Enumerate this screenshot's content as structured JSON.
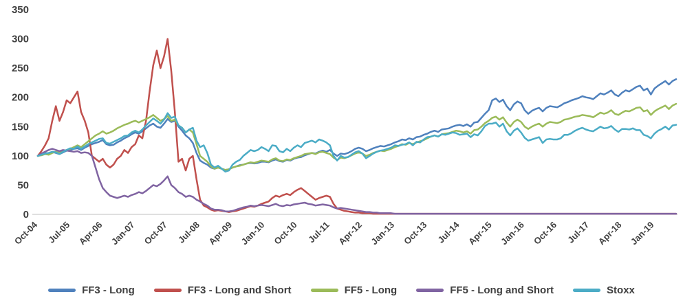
{
  "chart_data": {
    "type": "line",
    "title": "",
    "xlabel": "",
    "ylabel": "",
    "ylim": [
      0,
      350
    ],
    "y_ticks": [
      0,
      50,
      100,
      150,
      200,
      250,
      300,
      350
    ],
    "grid": false,
    "legend_position": "bottom",
    "x_unit": "month",
    "x_tick_interval": 9,
    "x_tick_labels": [
      "Oct-04",
      "Jul-05",
      "Apr-06",
      "Jan-07",
      "Oct-07",
      "Jul-08",
      "Apr-09",
      "Jan-10",
      "Oct-10",
      "Jul-11",
      "Apr-12",
      "Jan-13",
      "Oct-13",
      "Jul-14",
      "Apr-15",
      "Jan-16",
      "Oct-16",
      "Jul-17",
      "Apr-18",
      "Jan-19"
    ],
    "axis_label_color": "#404040",
    "axis_line_color": "#bfbfbf",
    "series": [
      {
        "name": "FF3 - Long",
        "color": "#4F81BD",
        "values": [
          100,
          102,
          105,
          104,
          107,
          105,
          103,
          106,
          109,
          110,
          112,
          113,
          110,
          114,
          117,
          120,
          122,
          124,
          127,
          120,
          118,
          119,
          123,
          126,
          130,
          133,
          137,
          140,
          138,
          142,
          147,
          152,
          155,
          150,
          148,
          155,
          163,
          158,
          160,
          150,
          143,
          135,
          130,
          122,
          105,
          92,
          88,
          85,
          80,
          78,
          80,
          78,
          76,
          77,
          80,
          82,
          84,
          85,
          87,
          88,
          87,
          88,
          90,
          90,
          89,
          92,
          94,
          91,
          90,
          93,
          92,
          95,
          97,
          98,
          101,
          103,
          105,
          104,
          107,
          109,
          107,
          110,
          104,
          100,
          104,
          103,
          105,
          108,
          112,
          114,
          112,
          108,
          110,
          113,
          115,
          117,
          116,
          118,
          120,
          123,
          125,
          128,
          127,
          130,
          128,
          132,
          133,
          136,
          138,
          141,
          143,
          141,
          145,
          146,
          147,
          150,
          152,
          153,
          151,
          154,
          150,
          157,
          158,
          165,
          172,
          178,
          195,
          198,
          192,
          196,
          185,
          178,
          188,
          193,
          190,
          178,
          172,
          177,
          180,
          182,
          176,
          182,
          185,
          184,
          183,
          186,
          190,
          192,
          195,
          197,
          199,
          202,
          200,
          199,
          197,
          202,
          207,
          205,
          208,
          212,
          205,
          202,
          208,
          212,
          210,
          214,
          218,
          220,
          212,
          215,
          205,
          215,
          220,
          224,
          228,
          222,
          228,
          231
        ]
      },
      {
        "name": "FF3 - Long and Short",
        "color": "#C0504D",
        "values": [
          100,
          108,
          118,
          130,
          160,
          185,
          160,
          175,
          195,
          190,
          200,
          210,
          175,
          160,
          140,
          100,
          95,
          90,
          95,
          85,
          80,
          85,
          95,
          100,
          110,
          105,
          115,
          120,
          135,
          130,
          160,
          210,
          255,
          280,
          250,
          270,
          300,
          245,
          175,
          90,
          95,
          75,
          95,
          100,
          60,
          25,
          15,
          12,
          8,
          6,
          7,
          6,
          5,
          4,
          5,
          6,
          8,
          10,
          12,
          14,
          13,
          15,
          18,
          20,
          22,
          28,
          32,
          30,
          33,
          35,
          33,
          38,
          42,
          45,
          40,
          35,
          30,
          25,
          28,
          30,
          32,
          30,
          18,
          10,
          8,
          6,
          5,
          4,
          3,
          3,
          2,
          2,
          2,
          1,
          1,
          1,
          1,
          1,
          1,
          1,
          1,
          1,
          1,
          1,
          1,
          1,
          1,
          1,
          1,
          1,
          1,
          1,
          1,
          1,
          1,
          1,
          1,
          1,
          1,
          1,
          1,
          1,
          1,
          1,
          1,
          1,
          1,
          1,
          1,
          1,
          1,
          1,
          1,
          1,
          1,
          1,
          1,
          1,
          1,
          1,
          1,
          1,
          1,
          1,
          1,
          1,
          1,
          1,
          1,
          1,
          1,
          1,
          1,
          1,
          1,
          1,
          1,
          1,
          1,
          1,
          1,
          1,
          1,
          1,
          1,
          1,
          1,
          1,
          1,
          1,
          1,
          1,
          1,
          1,
          1,
          1,
          1,
          1
        ]
      },
      {
        "name": "FF5 - Long",
        "color": "#9BBB59",
        "values": [
          100,
          101,
          103,
          102,
          105,
          107,
          105,
          108,
          110,
          112,
          115,
          118,
          115,
          120,
          125,
          130,
          135,
          138,
          142,
          138,
          140,
          143,
          147,
          150,
          153,
          155,
          158,
          160,
          157,
          160,
          163,
          166,
          170,
          165,
          160,
          163,
          168,
          160,
          162,
          152,
          148,
          140,
          145,
          140,
          120,
          100,
          95,
          90,
          82,
          78,
          80,
          78,
          76,
          77,
          80,
          82,
          83,
          85,
          87,
          89,
          88,
          90,
          92,
          91,
          90,
          94,
          96,
          92,
          91,
          94,
          93,
          96,
          98,
          100,
          103,
          104,
          105,
          103,
          106,
          107,
          105,
          103,
          97,
          93,
          97,
          96,
          98,
          101,
          104,
          106,
          104,
          100,
          102,
          105,
          107,
          109,
          108,
          110,
          112,
          115,
          117,
          120,
          119,
          122,
          120,
          123,
          125,
          127,
          130,
          133,
          135,
          133,
          137,
          138,
          139,
          141,
          143,
          142,
          140,
          142,
          138,
          144,
          145,
          150,
          156,
          160,
          165,
          167,
          162,
          166,
          157,
          150,
          158,
          162,
          158,
          150,
          146,
          150,
          153,
          155,
          150,
          155,
          158,
          157,
          156,
          158,
          162,
          163,
          165,
          167,
          168,
          170,
          169,
          168,
          166,
          170,
          174,
          172,
          174,
          178,
          172,
          170,
          174,
          177,
          176,
          179,
          182,
          183,
          176,
          178,
          170,
          176,
          180,
          183,
          186,
          180,
          186,
          189
        ]
      },
      {
        "name": "FF5 - Long and Short",
        "color": "#8064A2",
        "values": [
          100,
          104,
          107,
          110,
          112,
          110,
          108,
          110,
          109,
          108,
          107,
          108,
          105,
          106,
          105,
          100,
          80,
          60,
          45,
          38,
          32,
          30,
          28,
          30,
          32,
          30,
          33,
          35,
          38,
          36,
          40,
          45,
          50,
          48,
          52,
          58,
          65,
          50,
          45,
          38,
          35,
          30,
          32,
          30,
          25,
          22,
          18,
          15,
          10,
          8,
          8,
          7,
          5,
          5,
          6,
          8,
          10,
          12,
          13,
          15,
          14,
          15,
          16,
          15,
          14,
          16,
          18,
          15,
          14,
          16,
          15,
          17,
          18,
          19,
          20,
          18,
          17,
          15,
          16,
          17,
          16,
          15,
          12,
          10,
          11,
          10,
          9,
          8,
          7,
          6,
          5,
          4,
          4,
          3,
          3,
          2,
          2,
          2,
          2,
          1,
          1,
          1,
          1,
          1,
          1,
          1,
          1,
          1,
          1,
          1,
          1,
          1,
          1,
          1,
          1,
          1,
          1,
          1,
          1,
          1,
          1,
          1,
          1,
          1,
          1,
          1,
          1,
          1,
          1,
          1,
          1,
          1,
          1,
          1,
          1,
          1,
          1,
          1,
          1,
          1,
          1,
          1,
          1,
          1,
          1,
          1,
          1,
          1,
          1,
          1,
          1,
          1,
          1,
          1,
          1,
          1,
          1,
          1,
          1,
          1,
          1,
          1,
          1,
          1,
          1,
          1,
          1,
          1,
          1,
          1,
          1,
          1,
          1,
          1,
          1,
          1,
          1,
          1
        ]
      },
      {
        "name": "Stoxx",
        "color": "#4BACC6",
        "values": [
          100,
          102,
          104,
          105,
          107,
          106,
          103,
          107,
          110,
          113,
          112,
          116,
          112,
          116,
          120,
          123,
          126,
          129,
          130,
          122,
          121,
          124,
          127,
          130,
          134,
          135,
          140,
          143,
          140,
          145,
          152,
          158,
          164,
          160,
          155,
          162,
          173,
          165,
          167,
          152,
          148,
          140,
          145,
          148,
          126,
          115,
          118,
          105,
          85,
          80,
          83,
          78,
          73,
          75,
          85,
          90,
          93,
          100,
          105,
          110,
          108,
          110,
          115,
          112,
          108,
          118,
          117,
          108,
          106,
          112,
          108,
          114,
          118,
          115,
          122,
          124,
          126,
          123,
          128,
          126,
          123,
          118,
          100,
          92,
          100,
          97,
          98,
          102,
          106,
          108,
          104,
          96,
          100,
          104,
          107,
          109,
          110,
          112,
          114,
          118,
          117,
          119,
          120,
          123,
          118,
          124,
          123,
          128,
          132,
          133,
          135,
          133,
          137,
          136,
          138,
          140,
          139,
          136,
          137,
          138,
          132,
          137,
          135,
          142,
          151,
          155,
          155,
          157,
          150,
          155,
          142,
          135,
          143,
          147,
          140,
          131,
          126,
          128,
          130,
          132,
          122,
          128,
          129,
          128,
          128,
          130,
          136,
          136,
          139,
          143,
          146,
          148,
          145,
          143,
          142,
          146,
          150,
          147,
          148,
          151,
          145,
          141,
          146,
          146,
          145,
          147,
          144,
          144,
          136,
          134,
          130,
          138,
          143,
          146,
          150,
          145,
          152,
          153
        ]
      }
    ]
  }
}
